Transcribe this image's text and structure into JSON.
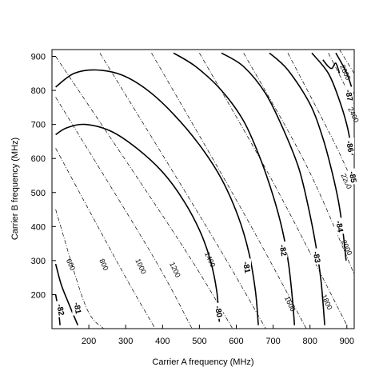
{
  "chart_data": {
    "type": "contour",
    "xlabel": "Carrier A frequency (MHz)",
    "ylabel": "Carrier B frequency (MHz)",
    "xlim": [
      100,
      920
    ],
    "ylim": [
      100,
      920
    ],
    "grid": false,
    "x_ticks": [
      200,
      300,
      400,
      500,
      600,
      700,
      800,
      900
    ],
    "y_ticks": [
      200,
      300,
      400,
      500,
      600,
      700,
      800,
      900
    ],
    "solid_contours": [
      {
        "label": "-80",
        "points": [
          [
            110,
            670
          ],
          [
            140,
            690
          ],
          [
            190,
            700
          ],
          [
            260,
            680
          ],
          [
            330,
            630
          ],
          [
            400,
            560
          ],
          [
            455,
            480
          ],
          [
            500,
            390
          ],
          [
            530,
            300
          ],
          [
            547,
            210
          ],
          [
            554,
            120
          ]
        ],
        "label_at": [
          551,
          150
        ]
      },
      {
        "label": "-81",
        "points": [
          [
            110,
            810
          ],
          [
            160,
            850
          ],
          [
            220,
            860
          ],
          [
            290,
            845
          ],
          [
            360,
            800
          ],
          [
            430,
            730
          ],
          [
            500,
            640
          ],
          [
            560,
            540
          ],
          [
            605,
            430
          ],
          [
            635,
            320
          ],
          [
            652,
            210
          ],
          [
            660,
            110
          ]
        ],
        "label_at": [
          627,
          280
        ]
      },
      {
        "label": "-81",
        "points": [
          [
            110,
            290
          ],
          [
            125,
            230
          ],
          [
            145,
            175
          ],
          [
            170,
            110
          ]
        ],
        "label_at": [
          168,
          160
        ]
      },
      {
        "label": "-82",
        "points": [
          [
            110,
            200
          ],
          [
            118,
            150
          ],
          [
            122,
            110
          ]
        ],
        "label_at": [
          122,
          155
        ]
      },
      {
        "label": "-82",
        "points": [
          [
            430,
            910
          ],
          [
            490,
            870
          ],
          [
            560,
            800
          ],
          [
            620,
            710
          ],
          [
            665,
            600
          ],
          [
            700,
            490
          ],
          [
            725,
            390
          ],
          [
            742,
            290
          ],
          [
            753,
            180
          ],
          [
            758,
            110
          ]
        ],
        "label_at": [
          726,
          330
        ]
      },
      {
        "label": "-83",
        "points": [
          [
            560,
            910
          ],
          [
            620,
            870
          ],
          [
            680,
            790
          ],
          [
            730,
            680
          ],
          [
            770,
            570
          ],
          [
            795,
            460
          ],
          [
            815,
            350
          ],
          [
            830,
            240
          ],
          [
            840,
            110
          ]
        ],
        "label_at": [
          817,
          310
        ]
      },
      {
        "label": "-84",
        "points": [
          [
            690,
            910
          ],
          [
            740,
            860
          ],
          [
            800,
            760
          ],
          [
            835,
            660
          ],
          [
            860,
            560
          ],
          [
            878,
            470
          ],
          [
            890,
            380
          ],
          [
            898,
            300
          ]
        ],
        "label_at": [
          879,
          400
        ]
      },
      {
        "label": "-85",
        "points": [
          [
            805,
            910
          ],
          [
            850,
            850
          ],
          [
            880,
            770
          ],
          [
            902,
            690
          ],
          [
            915,
            610
          ]
        ],
        "label_at": [
          915,
          545
        ]
      },
      {
        "label": "-86",
        "points": [
          [
            870,
            910
          ],
          [
            900,
            850
          ],
          [
            918,
            790
          ]
        ],
        "label_at": [
          907,
          635
        ]
      },
      {
        "label": "-87",
        "points": [
          [
            835,
            890
          ],
          [
            850,
            870
          ],
          [
            860,
            865
          ],
          [
            870,
            880
          ],
          [
            880,
            850
          ]
        ],
        "label_at": [
          905,
          785
        ]
      }
    ],
    "dashdot_contours": [
      {
        "label": "600",
        "points": [
          [
            110,
            450
          ],
          [
            190,
            170
          ],
          [
            240,
            100
          ]
        ],
        "label_at": [
          145,
          285
        ]
      },
      {
        "label": "800",
        "points": [
          [
            110,
            630
          ],
          [
            290,
            270
          ],
          [
            380,
            100
          ]
        ],
        "label_at": [
          235,
          285
        ]
      },
      {
        "label": "1000",
        "points": [
          [
            110,
            780
          ],
          [
            370,
            320
          ],
          [
            480,
            100
          ]
        ],
        "label_at": [
          335,
          280
        ]
      },
      {
        "label": "1200",
        "points": [
          [
            110,
            900
          ],
          [
            450,
            350
          ],
          [
            590,
            100
          ]
        ],
        "label_at": [
          428,
          270
        ]
      },
      {
        "label": "1400",
        "points": [
          [
            230,
            910
          ],
          [
            530,
            380
          ],
          [
            680,
            100
          ]
        ],
        "label_at": [
          523,
          300
        ]
      },
      {
        "label": "1600",
        "points": [
          [
            370,
            910
          ],
          [
            620,
            440
          ],
          [
            790,
            100
          ]
        ],
        "label_at": [
          740,
          170
        ]
      },
      {
        "label": "1800",
        "points": [
          [
            500,
            910
          ],
          [
            705,
            520
          ],
          [
            900,
            110
          ]
        ],
        "label_at": [
          840,
          175
        ]
      },
      {
        "label": "2000",
        "points": [
          [
            620,
            910
          ],
          [
            790,
            580
          ],
          [
            920,
            260
          ]
        ],
        "label_at": [
          894,
          335
        ]
      },
      {
        "label": "2200",
        "points": [
          [
            740,
            910
          ],
          [
            860,
            660
          ],
          [
            920,
            520
          ]
        ],
        "label_at": [
          893,
          530
        ]
      },
      {
        "label": "2400",
        "points": [
          [
            850,
            910
          ],
          [
            920,
            760
          ]
        ],
        "label_at": [
          912,
          725
        ]
      },
      {
        "label": "2600",
        "points": [
          [
            880,
            920
          ],
          [
            920,
            850
          ]
        ],
        "label_at": [
          890,
          850
        ]
      }
    ]
  }
}
